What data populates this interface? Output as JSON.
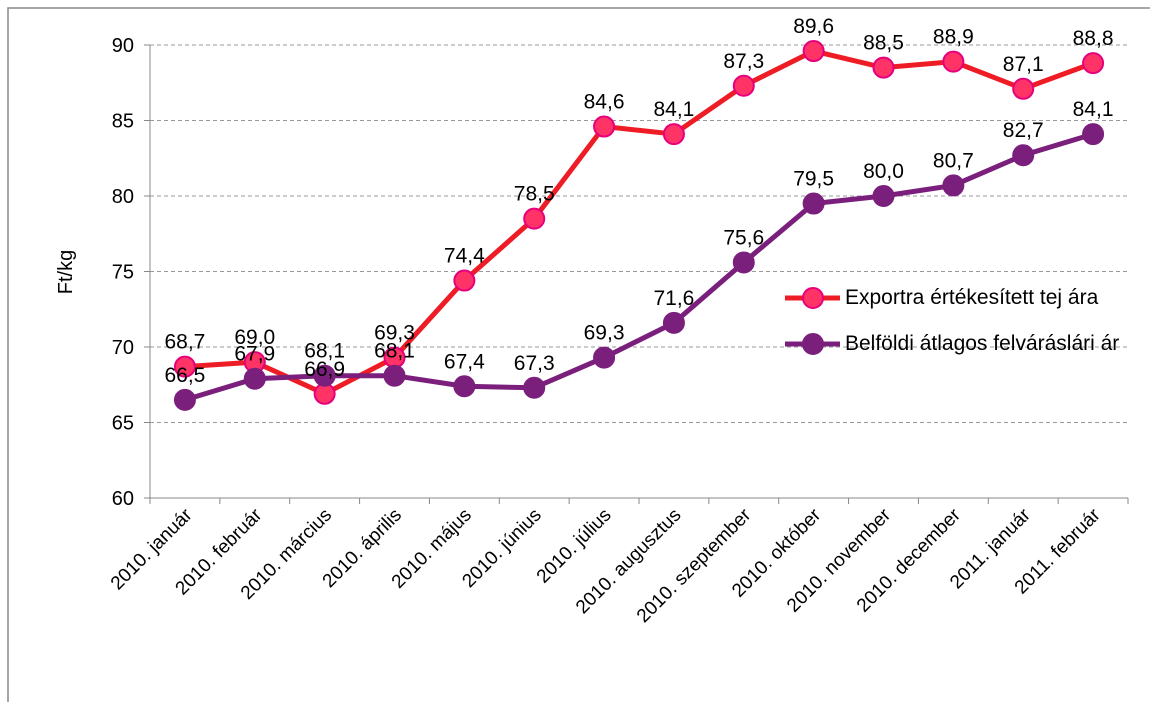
{
  "chart_data": {
    "type": "line",
    "y_label": "Ft/kg",
    "categories": [
      "2010. január",
      "2010. február",
      "2010. március",
      "2010. április",
      "2010. május",
      "2010. június",
      "2010. július",
      "2010. augusztus",
      "2010. szeptember",
      "2010. október",
      "2010. november",
      "2010. december",
      "2011. január",
      "2011. február"
    ],
    "series": [
      {
        "name": "Exportra értékesített tej ára",
        "color": "#ee1c25",
        "marker_color": "#ff3366",
        "values": [
          68.7,
          69.0,
          66.9,
          69.3,
          74.4,
          78.5,
          84.6,
          84.1,
          87.3,
          89.6,
          88.5,
          88.9,
          87.1,
          88.8
        ],
        "value_labels": [
          "68,7",
          "69,0",
          "66,9",
          "69,3",
          "74,4",
          "78,5",
          "84,6",
          "84,1",
          "87,3",
          "89,6",
          "88,5",
          "88,9",
          "87,1",
          "88,8"
        ]
      },
      {
        "name": "Belföldi átlagos felváráslári ár",
        "color": "#7b1f7d",
        "marker_color": "#7b1f7d",
        "values": [
          66.5,
          67.9,
          68.1,
          68.1,
          67.4,
          67.3,
          69.3,
          71.6,
          75.6,
          79.5,
          80.0,
          80.7,
          82.7,
          84.1
        ],
        "value_labels": [
          "66,5",
          "67,9",
          "68,1",
          "68,1",
          "67,4",
          "67,3",
          "69,3",
          "71,6",
          "75,6",
          "79,5",
          "80,0",
          "80,7",
          "82,7",
          "84,1"
        ]
      }
    ],
    "ylim": [
      60,
      90
    ],
    "yticks": [
      60,
      65,
      70,
      75,
      80,
      85,
      90
    ],
    "grid": true,
    "legend": "right"
  }
}
